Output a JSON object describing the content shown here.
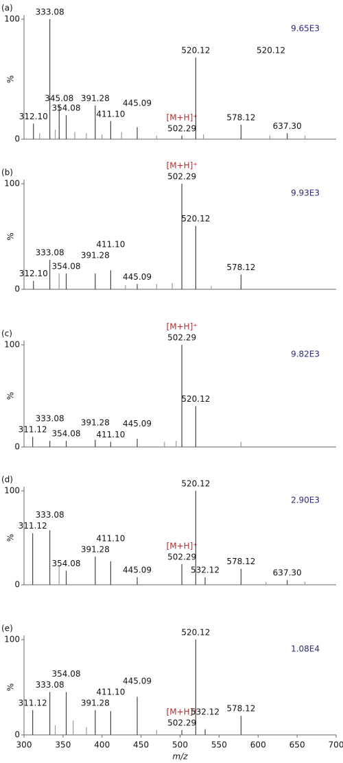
{
  "chart_data": [
    {
      "type": "spectrum",
      "panel": "(a)",
      "scale": "9.65E3",
      "ylabel": "%",
      "xlim": [
        300,
        700
      ],
      "ylim": [
        0,
        100
      ],
      "yticks": [
        0,
        100
      ],
      "annotations": [
        "520.12"
      ],
      "x": [
        312.1,
        320,
        333.08,
        340,
        345.08,
        354.08,
        365,
        380,
        391.28,
        400,
        411.1,
        425,
        445.09,
        470,
        502.29,
        520.12,
        530,
        578.12,
        615,
        637.3,
        660
      ],
      "values": [
        13,
        5,
        100,
        8,
        28,
        20,
        6,
        5,
        28,
        4,
        15,
        6,
        10,
        3,
        3,
        68,
        4,
        12,
        3,
        5,
        3
      ],
      "x_labels": [
        "312.10",
        null,
        "333.08",
        null,
        "345.08",
        "354.08",
        null,
        null,
        "391.28",
        null,
        "411.10",
        null,
        "445.09",
        null,
        "502.29",
        "520.12",
        null,
        "578.12",
        null,
        "637.30",
        null
      ],
      "notes": [
        null,
        null,
        null,
        null,
        null,
        null,
        null,
        null,
        null,
        null,
        null,
        null,
        null,
        null,
        "[M+H]⁺",
        null,
        null,
        null,
        null,
        null,
        null
      ]
    },
    {
      "type": "spectrum",
      "panel": "(b)",
      "scale": "9.93E3",
      "ylabel": "%",
      "xlim": [
        300,
        700
      ],
      "ylim": [
        0,
        100
      ],
      "yticks": [
        0,
        100
      ],
      "x": [
        312.1,
        333.08,
        345,
        354.08,
        391.28,
        411.1,
        430,
        445.09,
        470,
        490,
        502.29,
        520.12,
        540,
        578.12
      ],
      "values": [
        8,
        28,
        15,
        15,
        15,
        18,
        4,
        5,
        5,
        6,
        100,
        60,
        3,
        14
      ],
      "x_labels": [
        "312.10",
        "333.08",
        null,
        "354.08",
        "391.28",
        "411.10",
        null,
        "445.09",
        null,
        null,
        "502.29",
        "520.12",
        null,
        "578.12"
      ],
      "notes": [
        null,
        null,
        null,
        null,
        null,
        null,
        null,
        null,
        null,
        null,
        "[M+H]⁺",
        null,
        null,
        null
      ]
    },
    {
      "type": "spectrum",
      "panel": "(c)",
      "scale": "9.82E3",
      "ylabel": "%",
      "xlim": [
        300,
        700
      ],
      "ylim": [
        0,
        100
      ],
      "yticks": [
        0,
        100
      ],
      "x": [
        311.12,
        333.08,
        354.08,
        391.28,
        411.1,
        445.09,
        480,
        495,
        502.29,
        520.12,
        578.12
      ],
      "values": [
        10,
        6,
        6,
        7,
        5,
        8,
        5,
        6,
        100,
        40,
        5
      ],
      "x_labels": [
        "311.12",
        "333.08",
        "354.08",
        "391.28",
        "411.10",
        "445.09",
        null,
        null,
        "502.29",
        "520.12",
        null
      ],
      "notes": [
        null,
        null,
        null,
        null,
        null,
        null,
        null,
        null,
        "[M+H]⁺",
        null,
        null
      ]
    },
    {
      "type": "spectrum",
      "panel": "(d)",
      "scale": "2.90E3",
      "ylabel": "%",
      "xlim": [
        300,
        700
      ],
      "ylim": [
        0,
        100
      ],
      "yticks": [
        0,
        100
      ],
      "x": [
        311.12,
        333.08,
        345,
        354.08,
        391.28,
        411.1,
        445.09,
        502.29,
        520.12,
        532.12,
        578.12,
        610,
        637.3,
        660
      ],
      "values": [
        55,
        58,
        20,
        15,
        30,
        25,
        8,
        22,
        100,
        8,
        17,
        3,
        5,
        3
      ],
      "x_labels": [
        "311.12",
        "333.08",
        null,
        "354.08",
        "391.28",
        "411.10",
        "445.09",
        "502.29",
        "520.12",
        "532.12",
        "578.12",
        null,
        "637.30",
        null
      ],
      "notes": [
        null,
        null,
        null,
        null,
        null,
        null,
        null,
        "[M+H]⁺",
        null,
        null,
        null,
        null,
        null,
        null
      ]
    },
    {
      "type": "spectrum",
      "panel": "(e)",
      "scale": "1.08E4",
      "ylabel": "%",
      "xlabel": "m/z",
      "xlim": [
        300,
        700
      ],
      "ylim": [
        0,
        100
      ],
      "yticks": [
        0,
        100
      ],
      "xticks": [
        300,
        350,
        400,
        450,
        500,
        550,
        600,
        650,
        700
      ],
      "x": [
        311.12,
        333.08,
        340,
        354.08,
        363,
        380,
        391.28,
        411.1,
        445.09,
        470,
        502.29,
        520.12,
        532.12,
        578.12
      ],
      "values": [
        26,
        45,
        10,
        45,
        15,
        8,
        26,
        25,
        40,
        5,
        5,
        100,
        6,
        20
      ],
      "x_labels": [
        "311.12",
        "333.08",
        null,
        "354.08",
        null,
        null,
        "391.28",
        "411.10",
        "445.09",
        null,
        "502.29",
        "520.12",
        "532.12",
        "578.12"
      ],
      "notes": [
        null,
        null,
        null,
        null,
        null,
        null,
        null,
        null,
        null,
        null,
        "[M+H]⁺",
        null,
        null,
        null
      ]
    }
  ]
}
